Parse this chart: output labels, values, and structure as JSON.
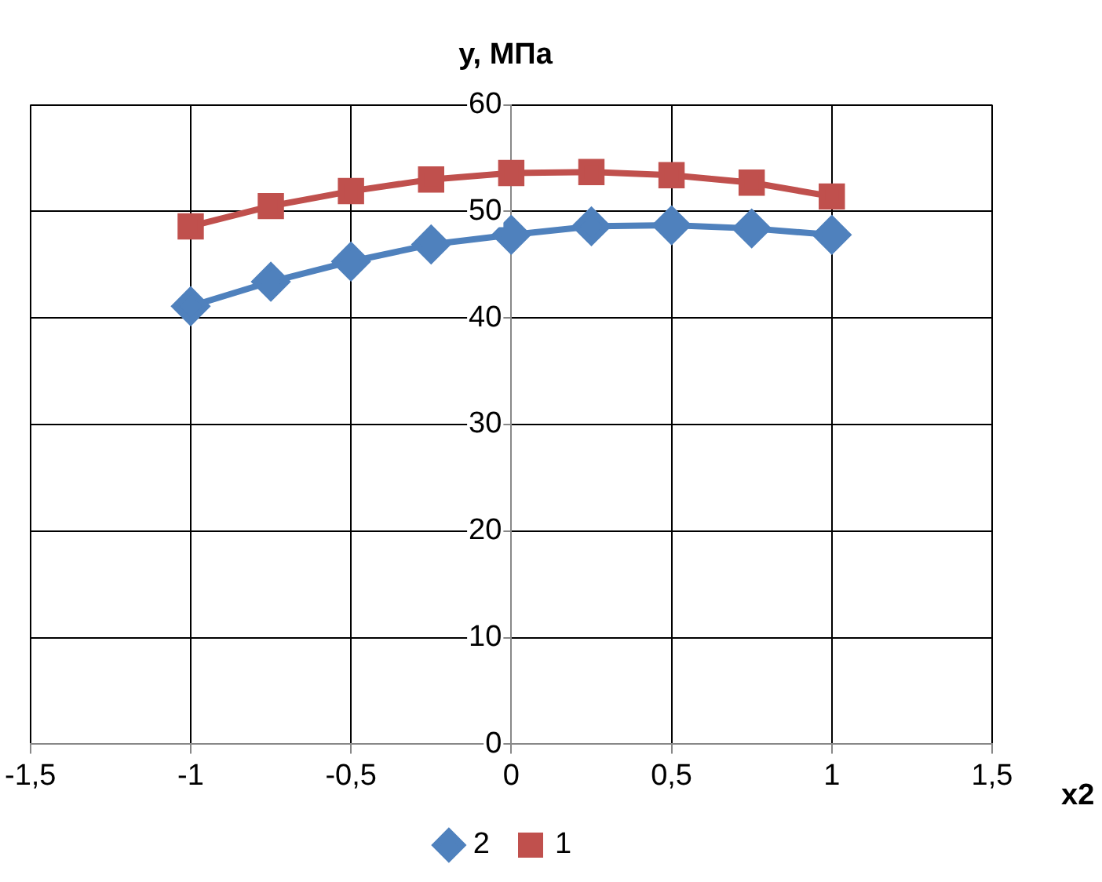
{
  "chart_data": {
    "type": "line",
    "ylabel": "y, МПа",
    "xlabel": "x2",
    "x": [
      -1,
      -0.75,
      -0.5,
      -0.25,
      0,
      0.25,
      0.5,
      0.75,
      1
    ],
    "series": [
      {
        "name": "2",
        "color": "#4f81bd",
        "marker": "diamond",
        "values": [
          41.1,
          43.4,
          45.3,
          46.9,
          47.8,
          48.6,
          48.7,
          48.4,
          47.8
        ]
      },
      {
        "name": "1",
        "color": "#c0504d",
        "marker": "square",
        "values": [
          48.6,
          50.5,
          51.9,
          53.0,
          53.6,
          53.7,
          53.4,
          52.7,
          51.4
        ]
      }
    ],
    "xlim": [
      -1.5,
      1.5
    ],
    "xticks": [
      {
        "value": -1.5,
        "label": "-1,5"
      },
      -1,
      {
        "value": -0.5,
        "label": "-0,5"
      },
      0,
      {
        "value": 0.5,
        "label": "0,5"
      },
      1,
      {
        "value": 1.5,
        "label": "1,5"
      }
    ],
    "ylim": [
      0,
      60
    ],
    "yticks": [
      0,
      10,
      20,
      30,
      40,
      50,
      60
    ],
    "grid": true,
    "legend": "bottom",
    "line_style": "solid"
  }
}
